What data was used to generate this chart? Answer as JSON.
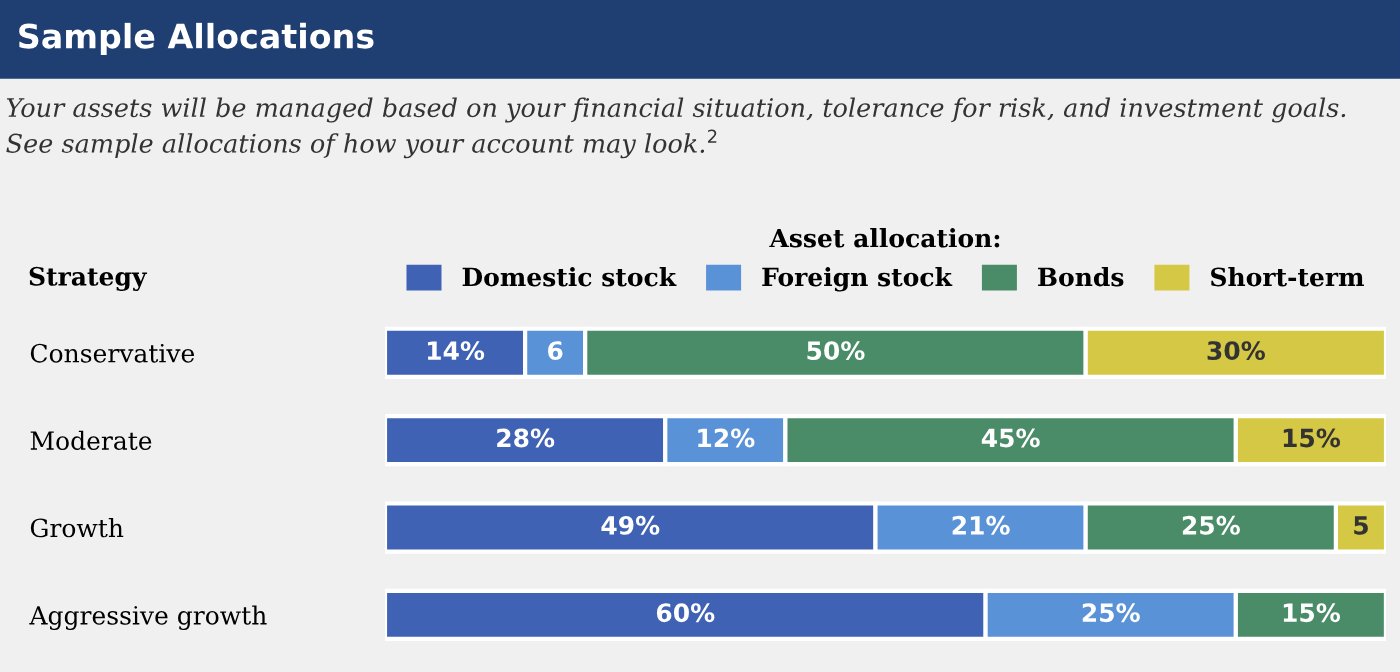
{
  "chart_data": {
    "type": "bar",
    "orientation": "horizontal",
    "stacked": true,
    "title": "Sample Allocations",
    "subtitle": "Your assets will be managed based on your financial situation, tolerance for risk, and investment goals. See sample allocations of how your account may look.$^{2}$",
    "ylabel": "Strategy",
    "legend_title": "Asset allocation:",
    "legend": "top",
    "categories": [
      "Conservative",
      "Moderate",
      "Growth",
      "Aggressive growth"
    ],
    "xlim": [
      0,
      100
    ],
    "tick_labels": "y",
    "grid": false,
    "series": [
      {
        "name": "Domestic stock",
        "color": "#3f62b5",
        "values": [
          14,
          28,
          49,
          60
        ],
        "value_labels": [
          "14%",
          "28%",
          "49%",
          "60%"
        ]
      },
      {
        "name": "Foreign stock",
        "color": "#5a92d8",
        "values": [
          6,
          12,
          21,
          25
        ],
        "value_labels": [
          "6",
          "12%",
          "21%",
          "25%"
        ]
      },
      {
        "name": "Bonds",
        "color": "#4a8c68",
        "values": [
          50,
          45,
          25,
          15
        ],
        "value_labels": [
          "50%",
          "45%",
          "25%",
          "15%"
        ]
      },
      {
        "name": "Short-term",
        "color": "#d4c844",
        "values": [
          30,
          15,
          5,
          null
        ],
        "value_labels": [
          "30%",
          "15%",
          "5",
          null
        ]
      }
    ]
  }
}
